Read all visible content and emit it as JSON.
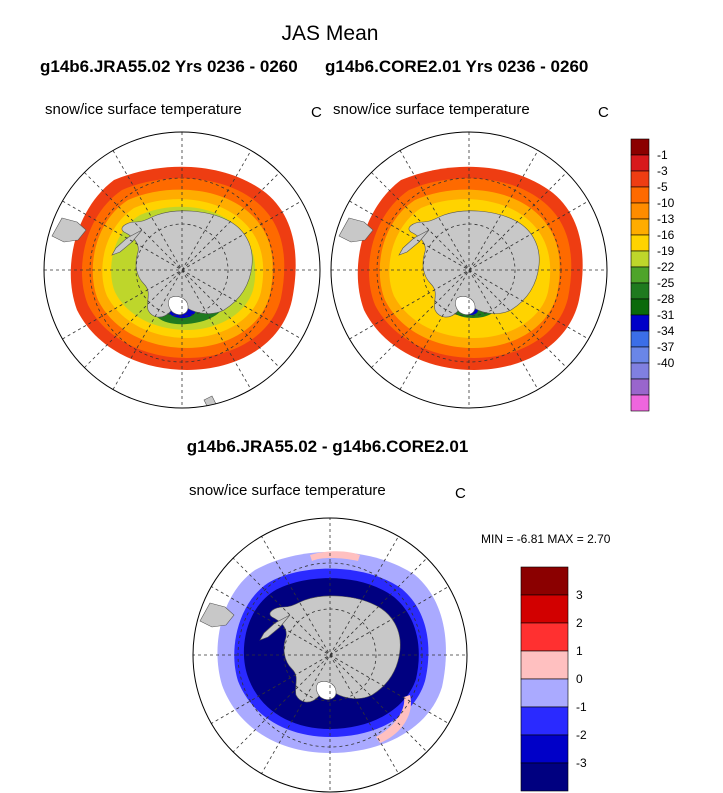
{
  "title": "JAS Mean",
  "panels": {
    "left": {
      "run": "g14b6.JRA55.02  Yrs 0236 - 0260",
      "variable": "snow/ice surface temperature",
      "unit": "C"
    },
    "right": {
      "run": "g14b6.CORE2.01  Yrs 0236 - 0260",
      "variable": "snow/ice surface temperature",
      "unit": "C"
    },
    "difference": {
      "title": "g14b6.JRA55.02 - g14b6.CORE2.01",
      "variable": "snow/ice surface temperature",
      "unit": "C",
      "min_label": "MIN =",
      "min_value": "-6.81",
      "max_label": "MAX =",
      "max_value": "2.70"
    }
  },
  "colorbar_main": {
    "labels": [
      "-1",
      "-3",
      "-5",
      "-10",
      "-13",
      "-16",
      "-19",
      "-22",
      "-25",
      "-28",
      "-31",
      "-34",
      "-37",
      "-40"
    ],
    "colors": [
      "#8b0000",
      "#d7191c",
      "#ee3d12",
      "#fe6a00",
      "#ff8c00",
      "#ffac00",
      "#ffd300",
      "#bed62b",
      "#4ea42a",
      "#1f7a1f",
      "#0a6a0a",
      "#0000c8",
      "#3b6ee8",
      "#6a86e8",
      "#8080e0",
      "#9966cc",
      "#ee66dd"
    ]
  },
  "colorbar_diff": {
    "labels": [
      "3",
      "2",
      "1",
      "0",
      "-1",
      "-2",
      "-3"
    ],
    "colors": [
      "#8b0000",
      "#d20000",
      "#ff3030",
      "#ffc0c0",
      "#aaaaff",
      "#2a2aff",
      "#0000c8",
      "#000080"
    ]
  }
}
